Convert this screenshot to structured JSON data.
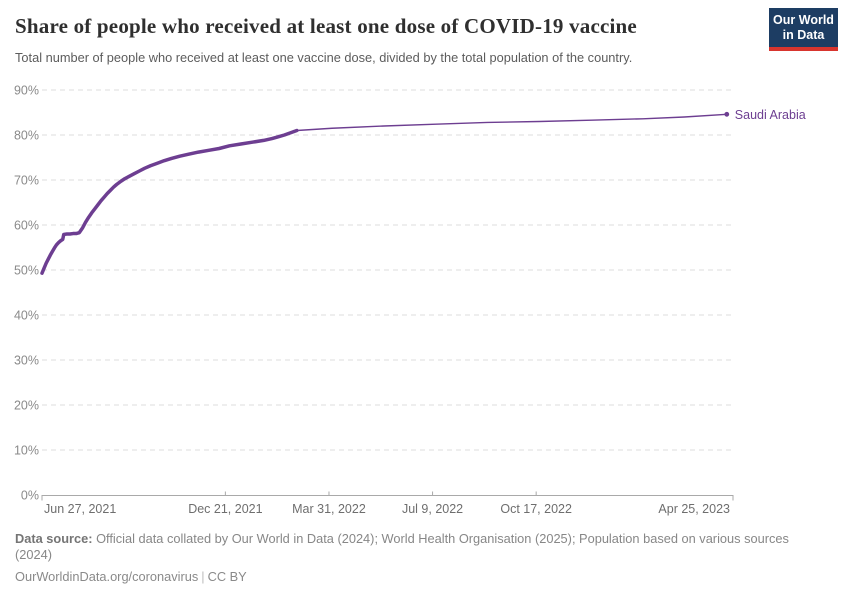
{
  "header": {
    "title": "Share of people who received at least one dose of COVID-19 vaccine",
    "subtitle": "Total number of people who received at least one vaccine dose, divided by the total population of the country.",
    "logo_line1": "Our World",
    "logo_line2": "in Data"
  },
  "colors": {
    "series_purple": "#6d3e91",
    "logo_navy": "#1d3d63",
    "logo_red": "#d8352e",
    "gridline": "#dedede",
    "axis": "#a9a9a9",
    "y_tick_text": "#8a8a8a",
    "x_tick_text": "#6e6e6e"
  },
  "chart_data": {
    "type": "line",
    "title": "Share of people who received at least one dose of COVID-19 vaccine",
    "ylabel": "",
    "xlabel": "",
    "ylim": [
      0,
      90
    ],
    "grid": "dashed-horizontal",
    "legend_position": "end-of-line-label",
    "y_axis": {
      "ticks": [
        0,
        10,
        20,
        30,
        40,
        50,
        60,
        70,
        80,
        90
      ],
      "unit": "%"
    },
    "x_axis": {
      "domain_days": [
        0,
        667
      ],
      "ticks": [
        {
          "day": 0,
          "label": "Jun 27, 2021",
          "align": "start"
        },
        {
          "day": 177,
          "label": "Dec 21, 2021",
          "align": "middle"
        },
        {
          "day": 277,
          "label": "Mar 31, 2022",
          "align": "middle"
        },
        {
          "day": 377,
          "label": "Jul 9, 2022",
          "align": "middle"
        },
        {
          "day": 477,
          "label": "Oct 17, 2022",
          "align": "middle"
        },
        {
          "day": 667,
          "label": "Apr 25, 2023",
          "align": "end"
        }
      ]
    },
    "series": [
      {
        "name": "Saudi Arabia",
        "color": "#6d3e91",
        "thick_until_day": 246,
        "points": [
          [
            0,
            49.3
          ],
          [
            2,
            50.4
          ],
          [
            4,
            51.5
          ],
          [
            6,
            52.4
          ],
          [
            8,
            53.3
          ],
          [
            10,
            54.1
          ],
          [
            12,
            54.9
          ],
          [
            14,
            55.6
          ],
          [
            16,
            56.1
          ],
          [
            18,
            56.5
          ],
          [
            20,
            56.8
          ],
          [
            21,
            57.9
          ],
          [
            24,
            58.0
          ],
          [
            27,
            58.0
          ],
          [
            30,
            58.1
          ],
          [
            33,
            58.1
          ],
          [
            36,
            58.3
          ],
          [
            39,
            59.3
          ],
          [
            42,
            60.6
          ],
          [
            45,
            61.7
          ],
          [
            48,
            62.7
          ],
          [
            51,
            63.6
          ],
          [
            54,
            64.5
          ],
          [
            57,
            65.4
          ],
          [
            60,
            66.2
          ],
          [
            63,
            67.0
          ],
          [
            66,
            67.7
          ],
          [
            69,
            68.4
          ],
          [
            72,
            69.0
          ],
          [
            76,
            69.7
          ],
          [
            80,
            70.3
          ],
          [
            84,
            70.8
          ],
          [
            89,
            71.4
          ],
          [
            94,
            72.0
          ],
          [
            99,
            72.6
          ],
          [
            105,
            73.2
          ],
          [
            111,
            73.7
          ],
          [
            118,
            74.3
          ],
          [
            125,
            74.8
          ],
          [
            133,
            75.3
          ],
          [
            141,
            75.7
          ],
          [
            151,
            76.2
          ],
          [
            161,
            76.6
          ],
          [
            171,
            77.0
          ],
          [
            181,
            77.6
          ],
          [
            192,
            78.0
          ],
          [
            203,
            78.4
          ],
          [
            214,
            78.8
          ],
          [
            222,
            79.2
          ],
          [
            228,
            79.6
          ],
          [
            234,
            80.0
          ],
          [
            240,
            80.5
          ],
          [
            246,
            81.0
          ],
          [
            280,
            81.5
          ],
          [
            330,
            82.0
          ],
          [
            380,
            82.4
          ],
          [
            430,
            82.8
          ],
          [
            480,
            83.0
          ],
          [
            530,
            83.3
          ],
          [
            580,
            83.6
          ],
          [
            620,
            84.0
          ],
          [
            661,
            84.6
          ]
        ]
      }
    ]
  },
  "footer": {
    "source_label": "Data source:",
    "source_text": " Official data collated by Our World in Data (2024); World Health Organisation (2025); Population based on various sources (2024)",
    "link": "OurWorldinData.org/coronavirus",
    "separator": "|",
    "license": "CC BY"
  }
}
